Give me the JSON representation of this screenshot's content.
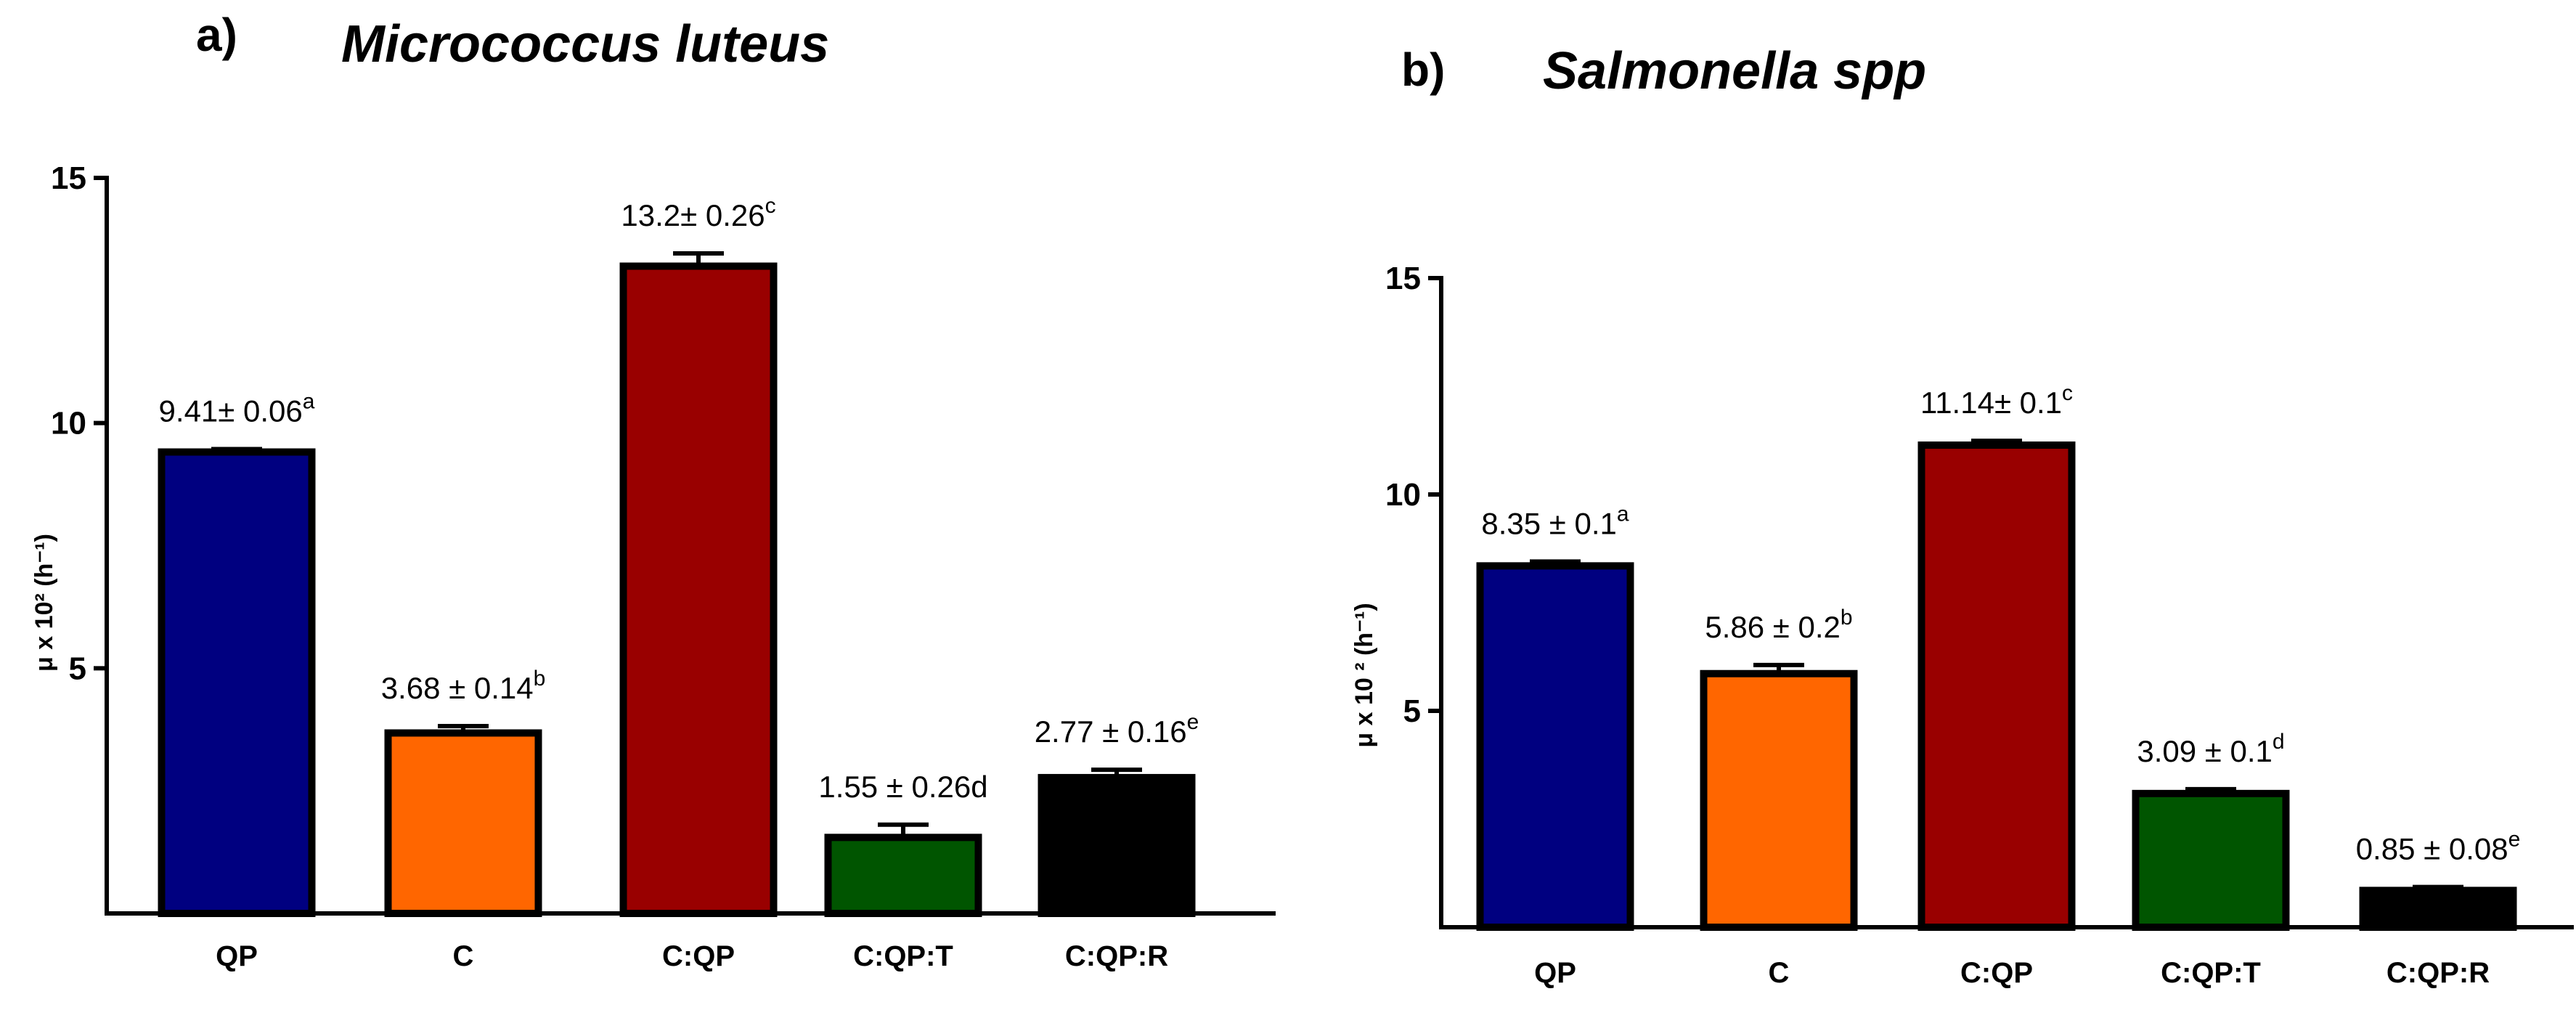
{
  "chart_data": [
    {
      "type": "bar",
      "panel": "a)",
      "title": "Micrococcus luteus",
      "ylabel": "μ x 10² (h⁻¹)",
      "xlabel": "",
      "ylim": [
        0,
        15
      ],
      "yticks": [
        5,
        10,
        15
      ],
      "categories": [
        "QP",
        "C",
        "C:QP",
        "C:QP:T",
        "C:QP:R"
      ],
      "values": [
        9.41,
        3.68,
        13.2,
        1.55,
        2.77
      ],
      "errors": [
        0.06,
        0.14,
        0.26,
        0.26,
        0.16
      ],
      "colors": [
        "#000080",
        "#ff6600",
        "#990000",
        "#005500",
        "#000000"
      ],
      "data_labels": [
        {
          "text": "9.41± 0.06",
          "sup": "a"
        },
        {
          "text": "3.68 ± 0.14",
          "sup": "b"
        },
        {
          "text": "13.2± 0.26",
          "sup": "c"
        },
        {
          "text": "1.55 ± 0.26d",
          "sup": ""
        },
        {
          "text": "2.77 ± 0.16",
          "sup": "e"
        }
      ]
    },
    {
      "type": "bar",
      "panel": "b)",
      "title": "Salmonella spp",
      "ylabel": "μ x 10 ² (h⁻¹)",
      "xlabel": "",
      "ylim": [
        0,
        15
      ],
      "yticks": [
        5,
        10,
        15
      ],
      "categories": [
        "QP",
        "C",
        "C:QP",
        "C:QP:T",
        "C:QP:R"
      ],
      "values": [
        8.35,
        5.86,
        11.14,
        3.09,
        0.85
      ],
      "errors": [
        0.1,
        0.2,
        0.1,
        0.1,
        0.08
      ],
      "colors": [
        "#000080",
        "#ff6600",
        "#990000",
        "#005500",
        "#000000"
      ],
      "data_labels": [
        {
          "text": "8.35 ± 0.1",
          "sup": "a"
        },
        {
          "text": "5.86 ± 0.2",
          "sup": "b"
        },
        {
          "text": "11.14± 0.1",
          "sup": "c"
        },
        {
          "text": "3.09 ± 0.1",
          "sup": "d"
        },
        {
          "text": "0.85 ± 0.08",
          "sup": "e"
        }
      ]
    }
  ]
}
